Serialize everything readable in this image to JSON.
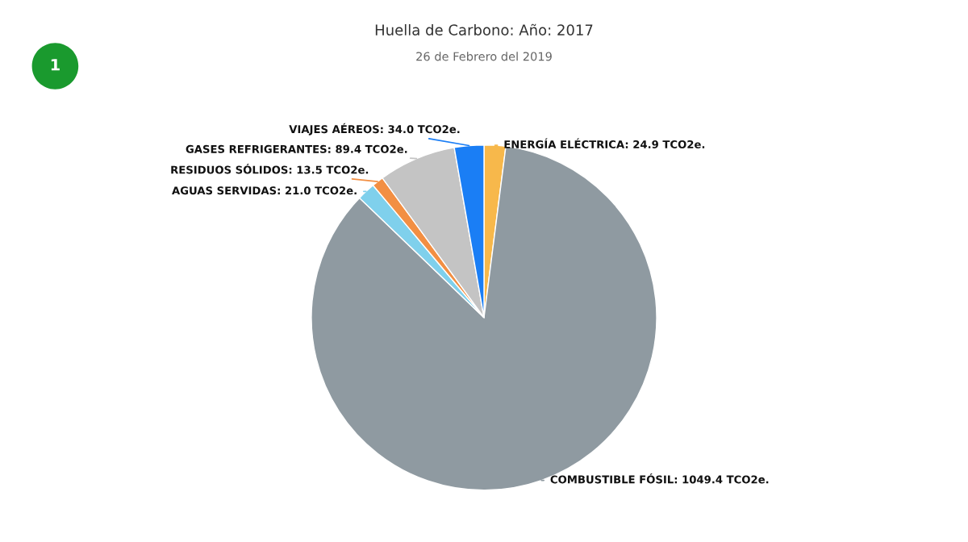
{
  "chart_data": {
    "type": "pie",
    "title": "Huella de Carbono: Año: 2017",
    "subtitle": "26 de Febrero del 2019",
    "annotations": [
      "1"
    ],
    "categories": [
      "ENERGÍA ELÉCTRICA",
      "COMBUSTIBLE FÓSIL",
      "AGUAS SERVIDAS",
      "RESIDUOS SÓLIDOS",
      "GASES REFRIGERANTES",
      "VIAJES AÉREOS"
    ],
    "values": [
      24.9,
      1049.4,
      21.0,
      13.5,
      89.4,
      34.0
    ],
    "value_labels": [
      "24.9 TCO2e.",
      "1049.4 TCO2e.",
      "21.0 TCO2e.",
      "13.5 TCO2e.",
      "89.4 TCO2e.",
      "34.0 TCO2e."
    ],
    "colors": [
      "#f7b84b",
      "#8f9aa1",
      "#7fd0ec",
      "#f28f43",
      "#c4c4c4",
      "#1a7ef5"
    ]
  }
}
